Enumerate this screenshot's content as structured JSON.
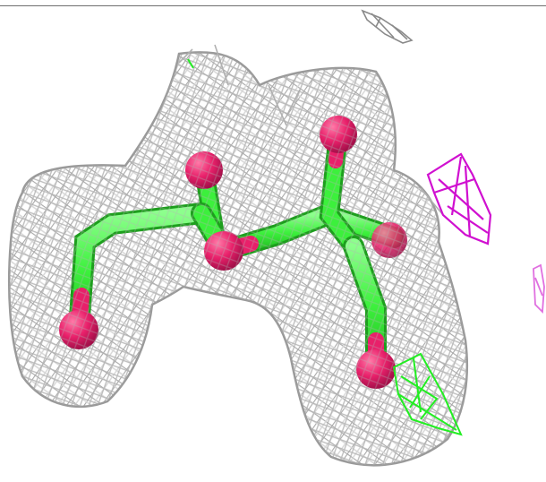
{
  "viewer": {
    "background": "#ffffff",
    "colors": {
      "mesh": "#8f8f8f",
      "mesh_light": "#d4d4d4",
      "carbon": "#3cf03c",
      "oxygen": "#e8206a",
      "positive_density": "#22ee22",
      "negative_density": "#d010d0",
      "negative_density_light": "#e070e0"
    },
    "icons": {
      "molecule": "ball-and-stick-molecule-icon",
      "mesh": "electron-density-mesh-icon"
    }
  }
}
